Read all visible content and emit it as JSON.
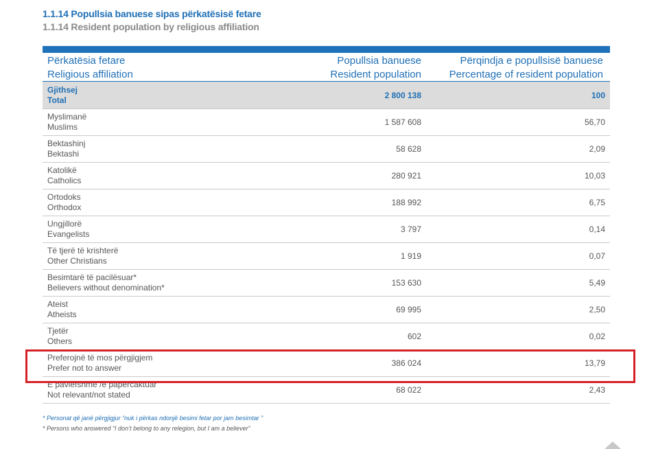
{
  "title": {
    "sq": "1.1.14 Popullsia banuese sipas përkatësisë fetare",
    "en": "1.1.14 Resident population by religious affiliation"
  },
  "header": {
    "col1_sq": "Përkatësia fetare",
    "col1_en": "Religious affiliation",
    "col2_sq": "Popullsia banuese",
    "col2_en": "Resident population",
    "col3_sq": "Përqindja e popullsisë banuese",
    "col3_en": "Percentage of resident population"
  },
  "rows": [
    {
      "sq": "Gjithsej",
      "en": "Total",
      "population": "2 800 138",
      "percent": "100"
    },
    {
      "sq": "Myslimanë",
      "en": "Muslims",
      "population": "1 587 608",
      "percent": "56,70"
    },
    {
      "sq": "Bektashinj",
      "en": "Bektashi",
      "population": "58 628",
      "percent": "2,09"
    },
    {
      "sq": "Katolikë",
      "en": "Catholics",
      "population": "280 921",
      "percent": "10,03"
    },
    {
      "sq": "Ortodoks",
      "en": "Orthodox",
      "population": "188 992",
      "percent": "6,75"
    },
    {
      "sq": "Ungjillorë",
      "en": "Evangelists",
      "population": "3 797",
      "percent": "0,14"
    },
    {
      "sq": "Të tjerë të krishterë",
      "en": "Other Christians",
      "population": "1 919",
      "percent": "0,07"
    },
    {
      "sq": "Besimtarë të pacilësuar*",
      "en": "Believers without denomination*",
      "population": "153 630",
      "percent": "5,49"
    },
    {
      "sq": "Ateist",
      "en": "Atheists",
      "population": "69 995",
      "percent": "2,50"
    },
    {
      "sq": "Tjetër",
      "en": "Others",
      "population": "602",
      "percent": "0,02"
    },
    {
      "sq": "Preferojnë të mos përgjigjem",
      "en": "Prefer not to answer",
      "population": "386 024",
      "percent": "13,79"
    },
    {
      "sq": "E pavlefshme /e papërcaktuar",
      "en": "Not relevant/not stated",
      "population": "68 022",
      "percent": "2,43"
    }
  ],
  "notes": {
    "sq": "* Personat që janë përgjigjur “nuk i përkas ndonjë besimi fetar por jam besimtar                    ”",
    "en": "* Persons who answered “I don’t belong to any relegion, but I am a believer”"
  }
}
